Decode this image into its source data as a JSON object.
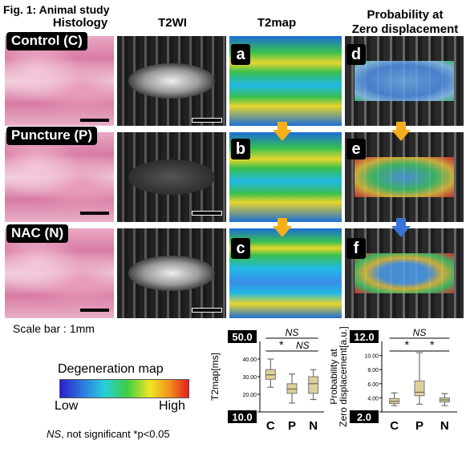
{
  "figure": {
    "title": "Fig. 1: Animal study",
    "columns": [
      "Histology",
      "T2WI",
      "T2map",
      "Probability at\nZero displacement"
    ],
    "rows": [
      "Control (C)",
      "Puncture (P)",
      "NAC (N)"
    ],
    "panel_letters": [
      "a",
      "b",
      "c",
      "d",
      "e",
      "f"
    ],
    "scale_bar": "Scale bar : 1mm",
    "legend": {
      "title": "Degeneration map",
      "low": "Low",
      "high": "High"
    },
    "footnote_ns": "NS",
    "footnote_rest": ", not significant *p<0.05"
  },
  "chart_data": [
    {
      "type": "box",
      "ylabel": "T2map[ms]",
      "ylim": [
        10.0,
        50.0
      ],
      "ymax_label": "50.0",
      "ymin_label": "10.0",
      "yticks": [
        "40.00",
        "30.00",
        "20.00",
        "10.00"
      ],
      "ytick_values": [
        40,
        30,
        20,
        10
      ],
      "categories": [
        "C",
        "P",
        "N"
      ],
      "boxes": [
        {
          "min": 24,
          "q1": 28.5,
          "median": 31,
          "q3": 34,
          "max": 40
        },
        {
          "min": 15,
          "q1": 20.5,
          "median": 23,
          "q3": 26,
          "max": 31.5
        },
        {
          "min": 17,
          "q1": 20.5,
          "median": 26,
          "q3": 30,
          "max": 34
        }
      ],
      "annotations": [
        {
          "text": "NS",
          "from": "C",
          "to": "N",
          "level": 3
        },
        {
          "text": "*",
          "from": "C",
          "to": "P",
          "level": 1
        },
        {
          "text": "NS",
          "from": "P",
          "to": "N",
          "level": 1
        }
      ]
    },
    {
      "type": "box",
      "ylabel": "Probability at\nZero displacement[a.u.]",
      "ylim": [
        2.0,
        12.0
      ],
      "ymax_label": "12.0",
      "ymin_label": "2.0",
      "yticks": [
        "10.00",
        "8.00",
        "6.00",
        "4.00",
        "2.00"
      ],
      "ytick_values": [
        10,
        8,
        6,
        4,
        2
      ],
      "categories": [
        "C",
        "P",
        "N"
      ],
      "boxes": [
        {
          "min": 2.9,
          "q1": 3.2,
          "median": 3.5,
          "q3": 3.9,
          "max": 4.7
        },
        {
          "min": 3.1,
          "q1": 4.3,
          "median": 4.8,
          "q3": 6.4,
          "max": 10.4
        },
        {
          "min": 2.9,
          "q1": 3.4,
          "median": 3.7,
          "q3": 4.0,
          "max": 4.6
        }
      ],
      "annotations": [
        {
          "text": "NS",
          "from": "C",
          "to": "N",
          "level": 3
        },
        {
          "text": "*",
          "from": "C",
          "to": "P",
          "level": 1
        },
        {
          "text": "*",
          "from": "P",
          "to": "N",
          "level": 1
        }
      ]
    }
  ],
  "colors": {
    "box_fill": "#ddd09a",
    "arrow_orange": "#f6ae1b",
    "arrow_blue": "#3a73d8"
  }
}
